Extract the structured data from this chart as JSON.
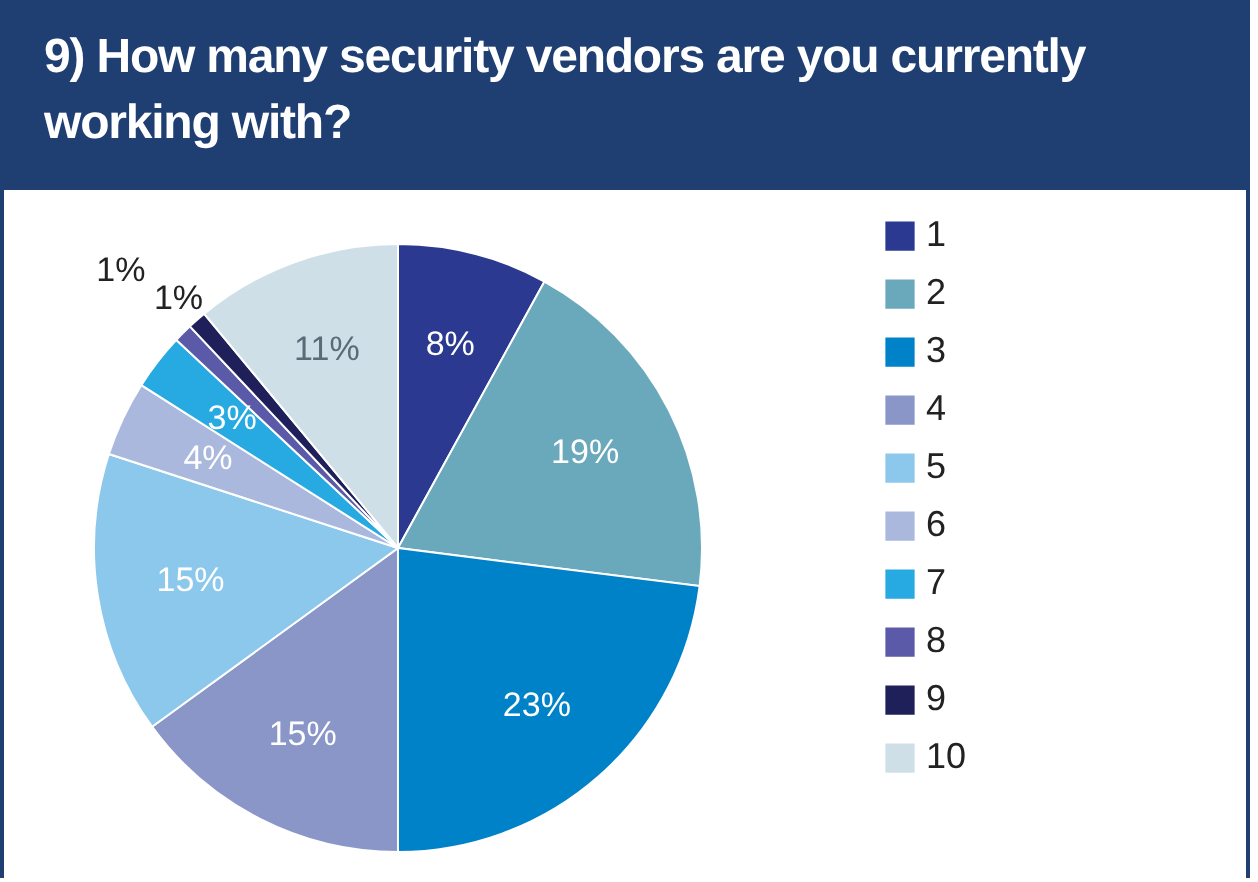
{
  "chart_data": {
    "type": "pie",
    "title": "9) How many security vendors are you currently working with?",
    "categories": [
      "1",
      "2",
      "3",
      "4",
      "5",
      "6",
      "7",
      "8",
      "9",
      "10"
    ],
    "values": [
      8,
      19,
      23,
      15,
      15,
      4,
      3,
      1,
      1,
      11
    ],
    "colors": [
      "#2b3990",
      "#6aa8bc",
      "#0082c8",
      "#8a96c8",
      "#8cc8ec",
      "#a9b8dc",
      "#27aae1",
      "#5a5aa8",
      "#1f1f5a",
      "#cfdfe8"
    ],
    "value_labels": [
      "8%",
      "19%",
      "23%",
      "15%",
      "15%",
      "4%",
      "3%",
      "1%",
      "1%",
      "11%"
    ],
    "legend": "right"
  }
}
